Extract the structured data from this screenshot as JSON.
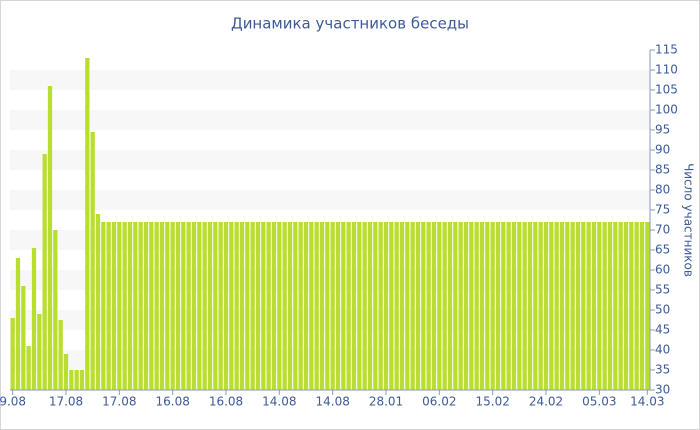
{
  "chart_data": {
    "type": "bar",
    "title": "Динамика участников беседы",
    "y_label": "Число участников",
    "color": "#b8df2e",
    "categories": [
      "9.08",
      null,
      null,
      null,
      null,
      null,
      null,
      null,
      null,
      null,
      "17.08",
      null,
      null,
      null,
      null,
      null,
      null,
      null,
      null,
      null,
      "17.08",
      null,
      null,
      null,
      null,
      null,
      null,
      null,
      null,
      null,
      "16.08",
      null,
      null,
      null,
      null,
      null,
      null,
      null,
      null,
      null,
      "16.08",
      null,
      null,
      null,
      null,
      null,
      null,
      null,
      null,
      null,
      "14.08",
      null,
      null,
      null,
      null,
      null,
      null,
      null,
      null,
      null,
      "14.08",
      null,
      null,
      null,
      null,
      null,
      null,
      null,
      null,
      null,
      "28.01",
      null,
      null,
      null,
      null,
      null,
      null,
      null,
      null,
      null,
      "06.02",
      null,
      null,
      null,
      null,
      null,
      null,
      null,
      null,
      null,
      "15.02",
      null,
      null,
      null,
      null,
      null,
      null,
      null,
      null,
      null,
      "24.02",
      null,
      null,
      null,
      null,
      null,
      null,
      null,
      null,
      null,
      "05.03",
      null,
      null,
      null,
      null,
      null,
      null,
      null,
      null,
      "14.03"
    ],
    "values": [
      48,
      63,
      56,
      41,
      65.5,
      49,
      89,
      106,
      70,
      47.5,
      39,
      35,
      35,
      35,
      113,
      94.5,
      74,
      72,
      72,
      72,
      72,
      72,
      72,
      72,
      72,
      72,
      72,
      72,
      72,
      72,
      72,
      72,
      72,
      72,
      72,
      72,
      72,
      72,
      72,
      72,
      72,
      72,
      72,
      72,
      72,
      72,
      72,
      72,
      72,
      72,
      72,
      72,
      72,
      72,
      72,
      72,
      72,
      72,
      72,
      72,
      72,
      72,
      72,
      72,
      72,
      72,
      72,
      72,
      72,
      72,
      72,
      72,
      72,
      72,
      72,
      72,
      72,
      72,
      72,
      72,
      72,
      72,
      72,
      72,
      72,
      72,
      72,
      72,
      72,
      72,
      72,
      72,
      72,
      72,
      72,
      72,
      72,
      72,
      72,
      72,
      72,
      72,
      72,
      72,
      72,
      72,
      72,
      72,
      72,
      72,
      72,
      72,
      72,
      72,
      72,
      72,
      72,
      72,
      72,
      72
    ],
    "ylim": [
      30,
      115
    ],
    "yticks": [
      30,
      35,
      40,
      45,
      50,
      55,
      60,
      65,
      70,
      75,
      80,
      85,
      90,
      95,
      100,
      105,
      110,
      115
    ],
    "grid": true
  }
}
